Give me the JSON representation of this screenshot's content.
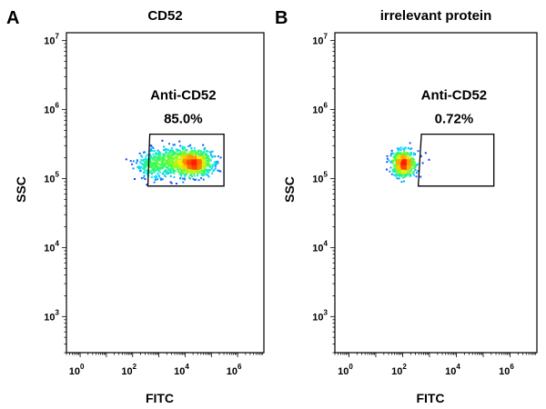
{
  "chart_data": [
    {
      "type": "scatter",
      "panel_letter": "A",
      "title": "CD52",
      "xlabel": "FITC",
      "ylabel": "SSC",
      "x_scale": "log",
      "y_scale": "log",
      "xlim": [
        0.3,
        10000000
      ],
      "ylim": [
        300,
        13000000
      ],
      "x_ticks": [
        {
          "base": "10",
          "exp": "0",
          "value": 1
        },
        {
          "base": "10",
          "exp": "2",
          "value": 100
        },
        {
          "base": "10",
          "exp": "4",
          "value": 10000
        },
        {
          "base": "10",
          "exp": "6",
          "value": 1000000
        }
      ],
      "y_ticks": [
        {
          "base": "10",
          "exp": "3",
          "value": 1000
        },
        {
          "base": "10",
          "exp": "4",
          "value": 10000
        },
        {
          "base": "10",
          "exp": "5",
          "value": 100000
        },
        {
          "base": "10",
          "exp": "6",
          "value": 1000000
        },
        {
          "base": "10",
          "exp": "7",
          "value": 10000000
        }
      ],
      "grid": false,
      "gate": {
        "name": "Anti-CD52",
        "percent": "85.0%",
        "polygon": [
          [
            450,
            440000
          ],
          [
            300000,
            440000
          ],
          [
            300000,
            78000
          ],
          [
            380,
            78000
          ]
        ]
      },
      "populations": [
        {
          "center": [
            20000,
            170000
          ],
          "spread": [
            0.35,
            0.09
          ],
          "weight": 0.55
        },
        {
          "center": [
            4000,
            190000
          ],
          "spread": [
            0.45,
            0.1
          ],
          "weight": 0.25
        },
        {
          "center": [
            600,
            160000
          ],
          "spread": [
            0.35,
            0.1
          ],
          "weight": 0.2
        }
      ]
    },
    {
      "type": "scatter",
      "panel_letter": "B",
      "title": "irrelevant protein",
      "xlabel": "FITC",
      "ylabel": "SSC",
      "x_scale": "log",
      "y_scale": "log",
      "xlim": [
        0.3,
        10000000
      ],
      "ylim": [
        300,
        13000000
      ],
      "x_ticks": [
        {
          "base": "10",
          "exp": "0",
          "value": 1
        },
        {
          "base": "10",
          "exp": "2",
          "value": 100
        },
        {
          "base": "10",
          "exp": "4",
          "value": 10000
        },
        {
          "base": "10",
          "exp": "6",
          "value": 1000000
        }
      ],
      "y_ticks": [
        {
          "base": "10",
          "exp": "3",
          "value": 1000
        },
        {
          "base": "10",
          "exp": "4",
          "value": 10000
        },
        {
          "base": "10",
          "exp": "5",
          "value": 100000
        },
        {
          "base": "10",
          "exp": "6",
          "value": 1000000
        },
        {
          "base": "10",
          "exp": "7",
          "value": 10000000
        }
      ],
      "grid": false,
      "gate": {
        "name": "Anti-CD52",
        "percent": "0.72%",
        "polygon": [
          [
            500,
            440000
          ],
          [
            250000,
            440000
          ],
          [
            250000,
            78000
          ],
          [
            380,
            78000
          ]
        ]
      },
      "populations": [
        {
          "center": [
            100,
            170000
          ],
          "spread": [
            0.2,
            0.09
          ],
          "weight": 1.0
        }
      ]
    }
  ],
  "colors": {
    "density_low": "#1a1aff",
    "density_mid": "#00e0ff",
    "density_mid2": "#40ff40",
    "density_high": "#ffee00",
    "density_peak": "#ff2000",
    "frame": "#000000",
    "gate_line": "#000000"
  }
}
